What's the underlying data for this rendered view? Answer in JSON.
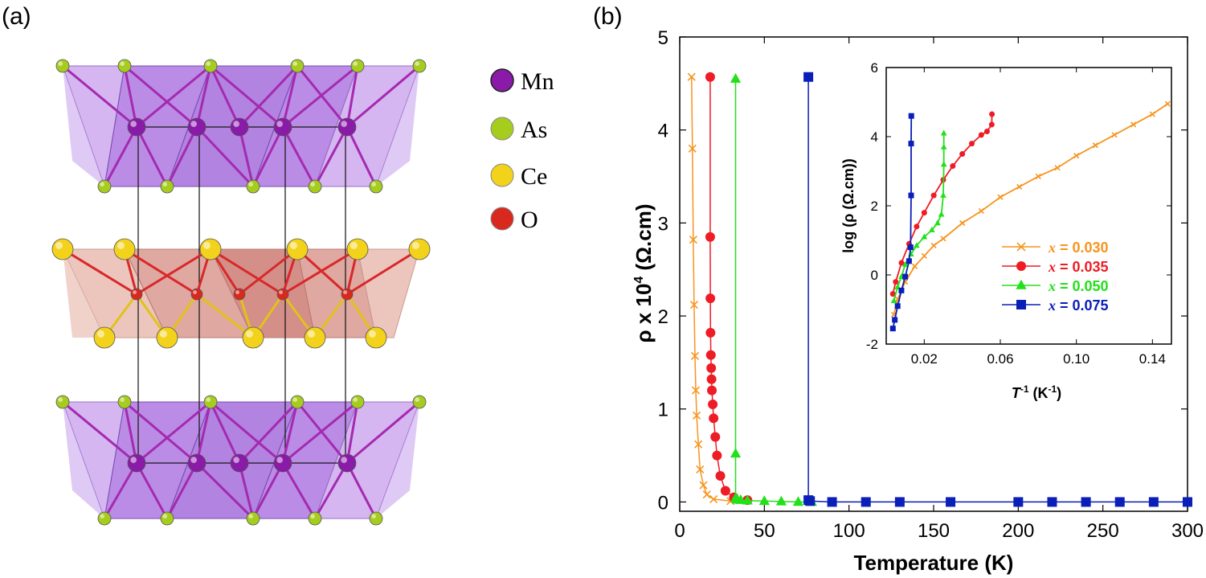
{
  "panel_a": {
    "label": "(a)",
    "legend": [
      {
        "name": "Mn",
        "color": "#8a1aa8"
      },
      {
        "name": "As",
        "color": "#a6cc1e"
      },
      {
        "name": "Ce",
        "color": "#f2d21a"
      },
      {
        "name": "O",
        "color": "#d9281e"
      }
    ]
  },
  "chart_data": [
    {
      "id": "main",
      "type": "line",
      "panel_label": "(b)",
      "xlabel": "Temperature (K)",
      "ylabel_main": "ρ x 10",
      "ylabel_sup": "4",
      "ylabel_units": " (Ω.cm)",
      "xlim": [
        0,
        300
      ],
      "ylim": [
        -0.1,
        5
      ],
      "xticks": [
        0,
        50,
        100,
        150,
        200,
        250,
        300
      ],
      "yticks": [
        0,
        1,
        2,
        3,
        4,
        5
      ],
      "series": [
        {
          "name": "x = 0.030",
          "color": "#f7941d",
          "marker": "x",
          "x": [
            7,
            7.5,
            8,
            8.5,
            9,
            9.5,
            10,
            11,
            12,
            14,
            16,
            20,
            30
          ],
          "y": [
            4.57,
            3.8,
            2.82,
            2.12,
            1.57,
            1.2,
            0.93,
            0.62,
            0.35,
            0.18,
            0.08,
            0.03,
            0.01
          ]
        },
        {
          "name": "x = 0.035",
          "color": "#ee1c24",
          "marker": "circle",
          "x": [
            18,
            18,
            18.1,
            18.2,
            18.4,
            18.6,
            18.8,
            19,
            19.5,
            20,
            21,
            22,
            24,
            27,
            32,
            40
          ],
          "y": [
            4.57,
            2.85,
            2.19,
            1.82,
            1.58,
            1.44,
            1.32,
            1.2,
            1.05,
            0.9,
            0.7,
            0.5,
            0.28,
            0.12,
            0.05,
            0.02
          ]
        },
        {
          "name": "x = 0.050",
          "color": "#22e01a",
          "marker": "triangle",
          "x": [
            33,
            33,
            33,
            33.5,
            34,
            36,
            40,
            50,
            60,
            70,
            78
          ],
          "y": [
            4.55,
            0.52,
            0.04,
            0.03,
            0.025,
            0.02,
            0.015,
            0.01,
            0.005,
            0.0,
            0.0
          ]
        },
        {
          "name": "x = 0.075",
          "color": "#0a1eb8",
          "marker": "square",
          "x": [
            76,
            76,
            77,
            90,
            110,
            130,
            160,
            200,
            220,
            240,
            260,
            280,
            300
          ],
          "y": [
            4.57,
            0.02,
            0.01,
            0.0,
            0.0,
            0.0,
            0.0,
            0.0,
            0.0,
            0.0,
            0.0,
            0.0,
            0.0
          ]
        }
      ]
    },
    {
      "id": "inset",
      "type": "line",
      "xlabel_main": "T",
      "xlabel_sup": "-1",
      "xlabel_units": " (K",
      "xlabel_units_sup": "-1",
      "xlabel_close": ")",
      "ylabel": "log (ρ (Ω.cm))",
      "xlim": [
        0,
        0.15
      ],
      "ylim": [
        -2,
        6
      ],
      "xticks": [
        0.02,
        0.06,
        0.1,
        0.14
      ],
      "xtick_labels": [
        "0.02",
        "0.06",
        "0.10",
        "0.14"
      ],
      "yticks": [
        -2,
        0,
        2,
        4,
        6
      ],
      "legend_position": "right",
      "series": [
        {
          "name": "x = 0.030",
          "label": "0.030",
          "color": "#f7941d",
          "marker": "x",
          "x": [
            0.004,
            0.006,
            0.01,
            0.015,
            0.02,
            0.025,
            0.03,
            0.04,
            0.05,
            0.06,
            0.07,
            0.08,
            0.09,
            0.1,
            0.11,
            0.12,
            0.13,
            0.14,
            0.148
          ],
          "y": [
            -1.15,
            -0.7,
            -0.2,
            0.25,
            0.55,
            0.85,
            1.05,
            1.5,
            1.85,
            2.25,
            2.55,
            2.85,
            3.1,
            3.45,
            3.75,
            4.05,
            4.35,
            4.65,
            4.95
          ]
        },
        {
          "name": "x = 0.035",
          "label": "0.035",
          "color": "#ee1c24",
          "marker": "circle",
          "x": [
            0.0035,
            0.005,
            0.008,
            0.012,
            0.016,
            0.02,
            0.025,
            0.03,
            0.035,
            0.04,
            0.045,
            0.05,
            0.053,
            0.0555,
            0.0556
          ],
          "y": [
            -0.55,
            -0.2,
            0.35,
            0.9,
            1.4,
            1.8,
            2.3,
            2.75,
            3.15,
            3.5,
            3.8,
            4.05,
            4.15,
            4.35,
            4.65
          ]
        },
        {
          "name": "x = 0.050",
          "label": "0.050",
          "color": "#22e01a",
          "marker": "triangle",
          "x": [
            0.004,
            0.006,
            0.008,
            0.01,
            0.013,
            0.016,
            0.02,
            0.024,
            0.027,
            0.029,
            0.03,
            0.0303,
            0.0303,
            0.0303
          ],
          "y": [
            -0.75,
            -0.35,
            -0.05,
            0.3,
            0.6,
            0.85,
            1.1,
            1.3,
            1.5,
            1.75,
            2.3,
            3.2,
            3.7,
            4.1
          ]
        },
        {
          "name": "x = 0.075",
          "label": "0.075",
          "color": "#0a1eb8",
          "marker": "square",
          "x": [
            0.0035,
            0.0045,
            0.006,
            0.008,
            0.01,
            0.012,
            0.0128,
            0.0131,
            0.0131,
            0.0132
          ],
          "y": [
            -1.55,
            -1.3,
            -0.9,
            -0.45,
            -0.05,
            0.4,
            0.8,
            2.3,
            3.8,
            4.6
          ]
        }
      ]
    }
  ]
}
